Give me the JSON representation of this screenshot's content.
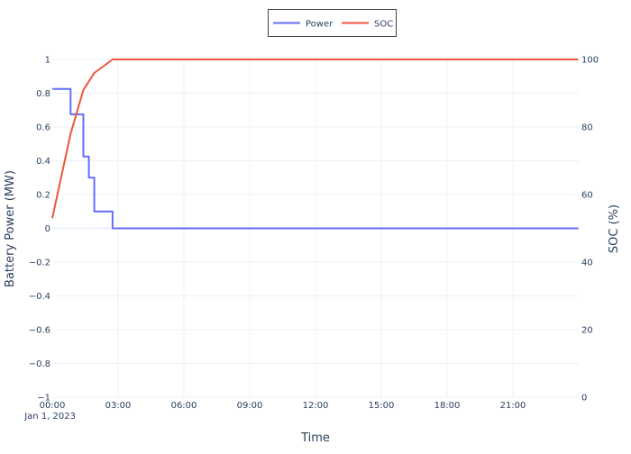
{
  "chart_data": {
    "type": "line",
    "xlabel": "Time",
    "xlim": [
      "2023-01-01T00:00",
      "2023-01-02T00:00"
    ],
    "x_ticks": [
      {
        "t": "2023-01-01T00:00",
        "label": "00:00",
        "sublabel": "Jan 1, 2023"
      },
      {
        "t": "2023-01-01T03:00",
        "label": "03:00"
      },
      {
        "t": "2023-01-01T06:00",
        "label": "06:00"
      },
      {
        "t": "2023-01-01T09:00",
        "label": "09:00"
      },
      {
        "t": "2023-01-01T12:00",
        "label": "12:00"
      },
      {
        "t": "2023-01-01T15:00",
        "label": "15:00"
      },
      {
        "t": "2023-01-01T18:00",
        "label": "18:00"
      },
      {
        "t": "2023-01-01T21:00",
        "label": "21:00"
      }
    ],
    "y_left": {
      "label": "Battery Power (MW)",
      "range": [
        -1,
        1
      ],
      "ticks": [
        1,
        0.8,
        0.6,
        0.4,
        0.2,
        0,
        -0.2,
        -0.4,
        -0.6,
        -0.8,
        -1
      ],
      "tick_labels": [
        "1",
        "0.8",
        "0.6",
        "0.4",
        "0.2",
        "0",
        "−0.2",
        "−0.4",
        "−0.6",
        "−0.8",
        "−1"
      ]
    },
    "y_right": {
      "label": "SOC (%)",
      "range": [
        0,
        100
      ],
      "ticks": [
        0,
        20,
        40,
        60,
        80,
        100
      ],
      "tick_labels": [
        "0",
        "20",
        "40",
        "60",
        "80",
        "100"
      ]
    },
    "grid": true,
    "legend": {
      "placement": "top-center",
      "bordered": true
    },
    "series": [
      {
        "name": "Power",
        "axis": "left",
        "color": "#636efa",
        "line_shape": "step",
        "points": [
          {
            "t": "2023-01-01T00:00",
            "y": 0.825
          },
          {
            "t": "2023-01-01T00:50",
            "y": 0.825
          },
          {
            "t": "2023-01-01T00:50",
            "y": 0.675
          },
          {
            "t": "2023-01-01T01:25",
            "y": 0.675
          },
          {
            "t": "2023-01-01T01:25",
            "y": 0.425
          },
          {
            "t": "2023-01-01T01:40",
            "y": 0.425
          },
          {
            "t": "2023-01-01T01:40",
            "y": 0.3
          },
          {
            "t": "2023-01-01T01:55",
            "y": 0.3
          },
          {
            "t": "2023-01-01T01:55",
            "y": 0.1
          },
          {
            "t": "2023-01-01T02:45",
            "y": 0.1
          },
          {
            "t": "2023-01-01T02:45",
            "y": 0
          },
          {
            "t": "2023-01-01T23:59",
            "y": 0
          }
        ]
      },
      {
        "name": "SOC",
        "axis": "right",
        "color": "#ef553b",
        "line_shape": "linear",
        "points": [
          {
            "t": "2023-01-01T00:00",
            "y": 53
          },
          {
            "t": "2023-01-01T00:30",
            "y": 68
          },
          {
            "t": "2023-01-01T00:50",
            "y": 78
          },
          {
            "t": "2023-01-01T01:25",
            "y": 91
          },
          {
            "t": "2023-01-01T01:55",
            "y": 96
          },
          {
            "t": "2023-01-01T02:20",
            "y": 98
          },
          {
            "t": "2023-01-01T02:45",
            "y": 100
          },
          {
            "t": "2023-01-01T23:59",
            "y": 100
          }
        ]
      }
    ]
  }
}
